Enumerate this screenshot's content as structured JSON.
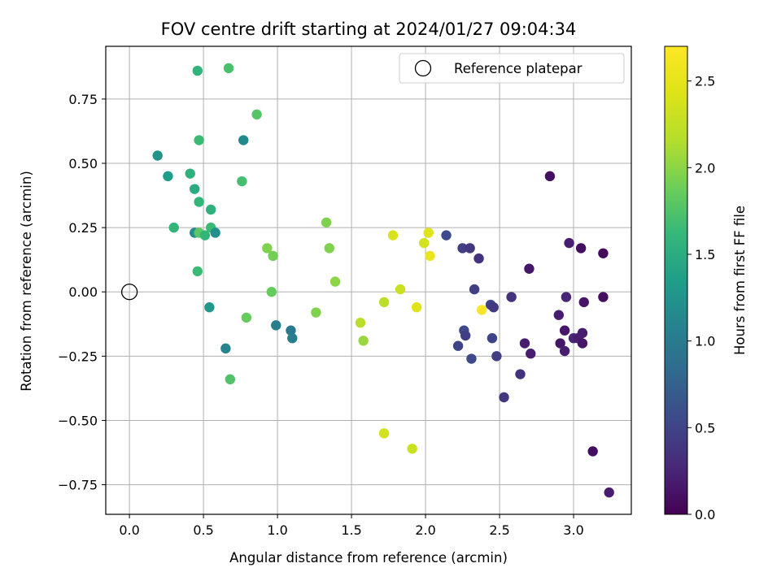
{
  "chart_data": {
    "type": "scatter",
    "title": "FOV centre drift starting at 2024/01/27 09:04:34",
    "xlabel": "Angular distance from reference (arcmin)",
    "ylabel": "Rotation from reference (arcmin)",
    "xlim": [
      -0.16,
      3.39
    ],
    "ylim": [
      -0.865,
      0.955
    ],
    "xticks": [
      0.0,
      0.5,
      1.0,
      1.5,
      2.0,
      2.5,
      3.0
    ],
    "xtick_labels": [
      "0.0",
      "0.5",
      "1.0",
      "1.5",
      "2.0",
      "2.5",
      "3.0"
    ],
    "yticks": [
      0.75,
      0.5,
      0.25,
      0.0,
      -0.25,
      -0.5,
      -0.75
    ],
    "ytick_labels": [
      "0.75",
      "0.50",
      "0.25",
      "0.00",
      "−0.25",
      "−0.50",
      "−0.75"
    ],
    "grid": true,
    "legend": {
      "placement": "top-right",
      "entries": [
        "Reference platepar"
      ]
    },
    "reference_point": {
      "x": 0.0,
      "y": 0.0
    },
    "colorbar": {
      "label": "Hours from first FF file",
      "colormap": "viridis",
      "range": [
        0.0,
        2.7
      ],
      "ticks": [
        0.0,
        0.5,
        1.0,
        1.5,
        2.0,
        2.5
      ],
      "tick_labels": [
        "0.0",
        "0.5",
        "1.0",
        "1.5",
        "2.0",
        "2.5"
      ]
    },
    "series": [
      {
        "points": [
          {
            "x": 0.46,
            "y": 0.86,
            "c": 1.58
          },
          {
            "x": 0.67,
            "y": 0.87,
            "c": 1.72
          },
          {
            "x": 0.86,
            "y": 0.69,
            "c": 1.78
          },
          {
            "x": 0.77,
            "y": 0.59,
            "c": 1.15
          },
          {
            "x": 0.47,
            "y": 0.59,
            "c": 1.65
          },
          {
            "x": 0.19,
            "y": 0.53,
            "c": 1.25
          },
          {
            "x": 0.26,
            "y": 0.45,
            "c": 1.35
          },
          {
            "x": 0.41,
            "y": 0.46,
            "c": 1.55
          },
          {
            "x": 0.76,
            "y": 0.43,
            "c": 1.7
          },
          {
            "x": 0.44,
            "y": 0.4,
            "c": 1.5
          },
          {
            "x": 0.47,
            "y": 0.35,
            "c": 1.6
          },
          {
            "x": 0.55,
            "y": 0.32,
            "c": 1.55
          },
          {
            "x": 0.3,
            "y": 0.25,
            "c": 1.6
          },
          {
            "x": 0.44,
            "y": 0.23,
            "c": 1.2
          },
          {
            "x": 0.47,
            "y": 0.23,
            "c": 1.8
          },
          {
            "x": 0.51,
            "y": 0.22,
            "c": 1.6
          },
          {
            "x": 0.55,
            "y": 0.25,
            "c": 1.65
          },
          {
            "x": 0.58,
            "y": 0.23,
            "c": 1.2
          },
          {
            "x": 0.46,
            "y": 0.08,
            "c": 1.65
          },
          {
            "x": 0.54,
            "y": -0.06,
            "c": 1.3
          },
          {
            "x": 0.65,
            "y": -0.22,
            "c": 1.1
          },
          {
            "x": 0.68,
            "y": -0.34,
            "c": 1.75
          },
          {
            "x": 0.79,
            "y": -0.1,
            "c": 1.85
          },
          {
            "x": 0.93,
            "y": 0.17,
            "c": 1.95
          },
          {
            "x": 0.97,
            "y": 0.14,
            "c": 1.9
          },
          {
            "x": 0.96,
            "y": 0.0,
            "c": 1.85
          },
          {
            "x": 0.99,
            "y": -0.13,
            "c": 1.05
          },
          {
            "x": 1.09,
            "y": -0.15,
            "c": 1.0
          },
          {
            "x": 1.1,
            "y": -0.18,
            "c": 1.05
          },
          {
            "x": 1.26,
            "y": -0.08,
            "c": 1.95
          },
          {
            "x": 1.33,
            "y": 0.27,
            "c": 1.95
          },
          {
            "x": 1.35,
            "y": 0.17,
            "c": 1.95
          },
          {
            "x": 1.39,
            "y": 0.04,
            "c": 2.0
          },
          {
            "x": 1.56,
            "y": -0.12,
            "c": 2.2
          },
          {
            "x": 1.58,
            "y": -0.19,
            "c": 2.05
          },
          {
            "x": 1.72,
            "y": -0.04,
            "c": 2.2
          },
          {
            "x": 1.72,
            "y": -0.55,
            "c": 2.35
          },
          {
            "x": 1.78,
            "y": 0.22,
            "c": 2.4
          },
          {
            "x": 1.83,
            "y": 0.01,
            "c": 2.3
          },
          {
            "x": 1.91,
            "y": -0.61,
            "c": 2.3
          },
          {
            "x": 1.94,
            "y": -0.06,
            "c": 2.45
          },
          {
            "x": 1.99,
            "y": 0.19,
            "c": 2.35
          },
          {
            "x": 2.02,
            "y": 0.23,
            "c": 2.45
          },
          {
            "x": 2.03,
            "y": 0.14,
            "c": 2.55
          },
          {
            "x": 2.14,
            "y": 0.22,
            "c": 0.55
          },
          {
            "x": 2.22,
            "y": -0.21,
            "c": 0.5
          },
          {
            "x": 2.25,
            "y": 0.17,
            "c": 0.45
          },
          {
            "x": 2.26,
            "y": -0.15,
            "c": 0.55
          },
          {
            "x": 2.27,
            "y": -0.17,
            "c": 0.45
          },
          {
            "x": 2.3,
            "y": 0.17,
            "c": 0.4
          },
          {
            "x": 2.31,
            "y": -0.26,
            "c": 0.55
          },
          {
            "x": 2.33,
            "y": 0.01,
            "c": 0.45
          },
          {
            "x": 2.36,
            "y": 0.13,
            "c": 0.35
          },
          {
            "x": 2.38,
            "y": -0.07,
            "c": 2.65
          },
          {
            "x": 2.44,
            "y": -0.05,
            "c": 0.5
          },
          {
            "x": 2.45,
            "y": -0.18,
            "c": 0.5
          },
          {
            "x": 2.46,
            "y": -0.06,
            "c": 0.4
          },
          {
            "x": 2.48,
            "y": -0.25,
            "c": 0.45
          },
          {
            "x": 2.53,
            "y": -0.41,
            "c": 0.4
          },
          {
            "x": 2.58,
            "y": -0.02,
            "c": 0.35
          },
          {
            "x": 2.64,
            "y": -0.32,
            "c": 0.35
          },
          {
            "x": 2.67,
            "y": -0.2,
            "c": 0.2
          },
          {
            "x": 2.7,
            "y": 0.09,
            "c": 0.15
          },
          {
            "x": 2.71,
            "y": -0.24,
            "c": 0.2
          },
          {
            "x": 2.84,
            "y": 0.45,
            "c": 0.1
          },
          {
            "x": 2.9,
            "y": -0.09,
            "c": 0.2
          },
          {
            "x": 2.91,
            "y": -0.2,
            "c": 0.15
          },
          {
            "x": 2.94,
            "y": -0.23,
            "c": 0.2
          },
          {
            "x": 2.94,
            "y": -0.15,
            "c": 0.15
          },
          {
            "x": 2.95,
            "y": -0.02,
            "c": 0.25
          },
          {
            "x": 2.97,
            "y": 0.19,
            "c": 0.2
          },
          {
            "x": 3.0,
            "y": -0.18,
            "c": 0.25
          },
          {
            "x": 3.03,
            "y": -0.18,
            "c": 0.2
          },
          {
            "x": 3.05,
            "y": 0.17,
            "c": 0.1
          },
          {
            "x": 3.06,
            "y": -0.2,
            "c": 0.15
          },
          {
            "x": 3.06,
            "y": -0.16,
            "c": 0.2
          },
          {
            "x": 3.07,
            "y": -0.04,
            "c": 0.15
          },
          {
            "x": 3.13,
            "y": -0.62,
            "c": 0.1
          },
          {
            "x": 3.2,
            "y": 0.15,
            "c": 0.05
          },
          {
            "x": 3.2,
            "y": -0.02,
            "c": 0.1
          },
          {
            "x": 3.24,
            "y": -0.78,
            "c": 0.2
          }
        ]
      }
    ]
  }
}
